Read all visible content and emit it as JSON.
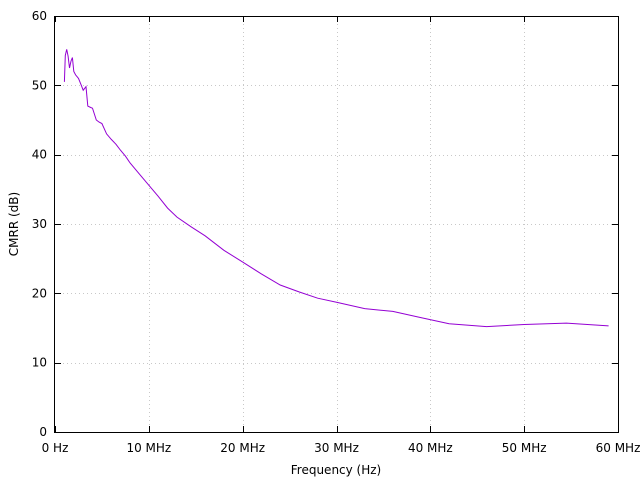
{
  "chart_data": {
    "type": "line",
    "title": "",
    "xlabel": "Frequency (Hz)",
    "ylabel": "CMRR (dB)",
    "xlim": [
      0,
      60000000
    ],
    "ylim": [
      0,
      60
    ],
    "grid": true,
    "x_ticks": [
      0,
      10000000,
      20000000,
      30000000,
      40000000,
      50000000,
      60000000
    ],
    "x_tick_labels": [
      "0  Hz",
      "10 MHz",
      "20 MHz",
      "30 MHz",
      "40 MHz",
      "50 MHz",
      "60 MHz"
    ],
    "y_ticks": [
      0,
      10,
      20,
      30,
      40,
      50,
      60
    ],
    "y_tick_labels": [
      "0",
      "10",
      "20",
      "30",
      "40",
      "50",
      "60"
    ],
    "series": [
      {
        "color": "#9400d3",
        "x": [
          1000000,
          1100000,
          1250000,
          1400000,
          1550000,
          1700000,
          1850000,
          2000000,
          2200000,
          2500000,
          2800000,
          3000000,
          3300000,
          3500000,
          3800000,
          4000000,
          4400000,
          4700000,
          5000000,
          5500000,
          6000000,
          6500000,
          7000000,
          7500000,
          8000000,
          9000000,
          10000000,
          11000000,
          12000000,
          13000000,
          14500000,
          16000000,
          18000000,
          20000000,
          22000000,
          24000000,
          26000000,
          28000000,
          30000000,
          33000000,
          36000000,
          39000000,
          42000000,
          46000000,
          50000000,
          54500000,
          59000000
        ],
        "values": [
          50.5,
          54.3,
          55.2,
          54.2,
          52.5,
          53.5,
          54.0,
          52.0,
          51.5,
          51.0,
          50.0,
          49.3,
          49.8,
          47.0,
          46.8,
          46.7,
          45.0,
          44.7,
          44.5,
          43.0,
          42.2,
          41.5,
          40.6,
          39.8,
          38.8,
          37.2,
          35.6,
          34.0,
          32.3,
          31.0,
          29.6,
          28.3,
          26.2,
          24.5,
          22.8,
          21.2,
          20.2,
          19.3,
          18.7,
          17.8,
          17.4,
          16.5,
          15.6,
          15.2,
          15.5,
          15.7,
          15.3
        ]
      }
    ]
  }
}
